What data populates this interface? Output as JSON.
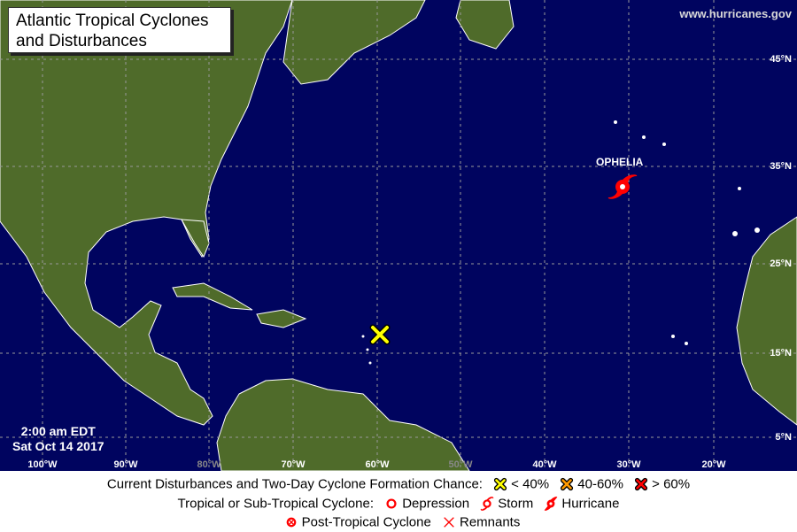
{
  "title": "Atlantic Tropical Cyclones and Disturbances",
  "title_lines": [
    "Atlantic Tropical Cyclones",
    "and Disturbances"
  ],
  "credit": "www.hurricanes.gov",
  "timestamp": {
    "time": "2:00 am EDT",
    "date": "Sat Oct 14 2017"
  },
  "latitude_labels": [
    "45°N",
    "35°N",
    "25°N",
    "15°N",
    "5°N"
  ],
  "longitude_labels": [
    "100°W",
    "90°W",
    "80°W",
    "70°W",
    "60°W",
    "50°W",
    "40°W",
    "30°W",
    "20°W"
  ],
  "systems": [
    {
      "name": "OPHELIA",
      "type": "hurricane",
      "icon": "hurricane-icon",
      "color": "#ff0000"
    },
    {
      "name": "",
      "type": "disturbance",
      "chance": "< 40%",
      "icon": "yellow-x-icon",
      "color": "#ffff00"
    }
  ],
  "legend": {
    "row1_label": "Current Disturbances and Two-Day Cyclone Formation Chance:",
    "low": "< 40%",
    "mid": "40-60%",
    "high": "> 60%",
    "row2_label": "Tropical or Sub-Tropical Cyclone:",
    "depression": "Depression",
    "storm": "Storm",
    "hurricane": "Hurricane",
    "post_tropical": "Post-Tropical Cyclone",
    "remnants": "Remnants",
    "colors": {
      "low": "#ffff00",
      "mid": "#ff9900",
      "high": "#ff0000",
      "cyclone": "#ff0000"
    }
  }
}
